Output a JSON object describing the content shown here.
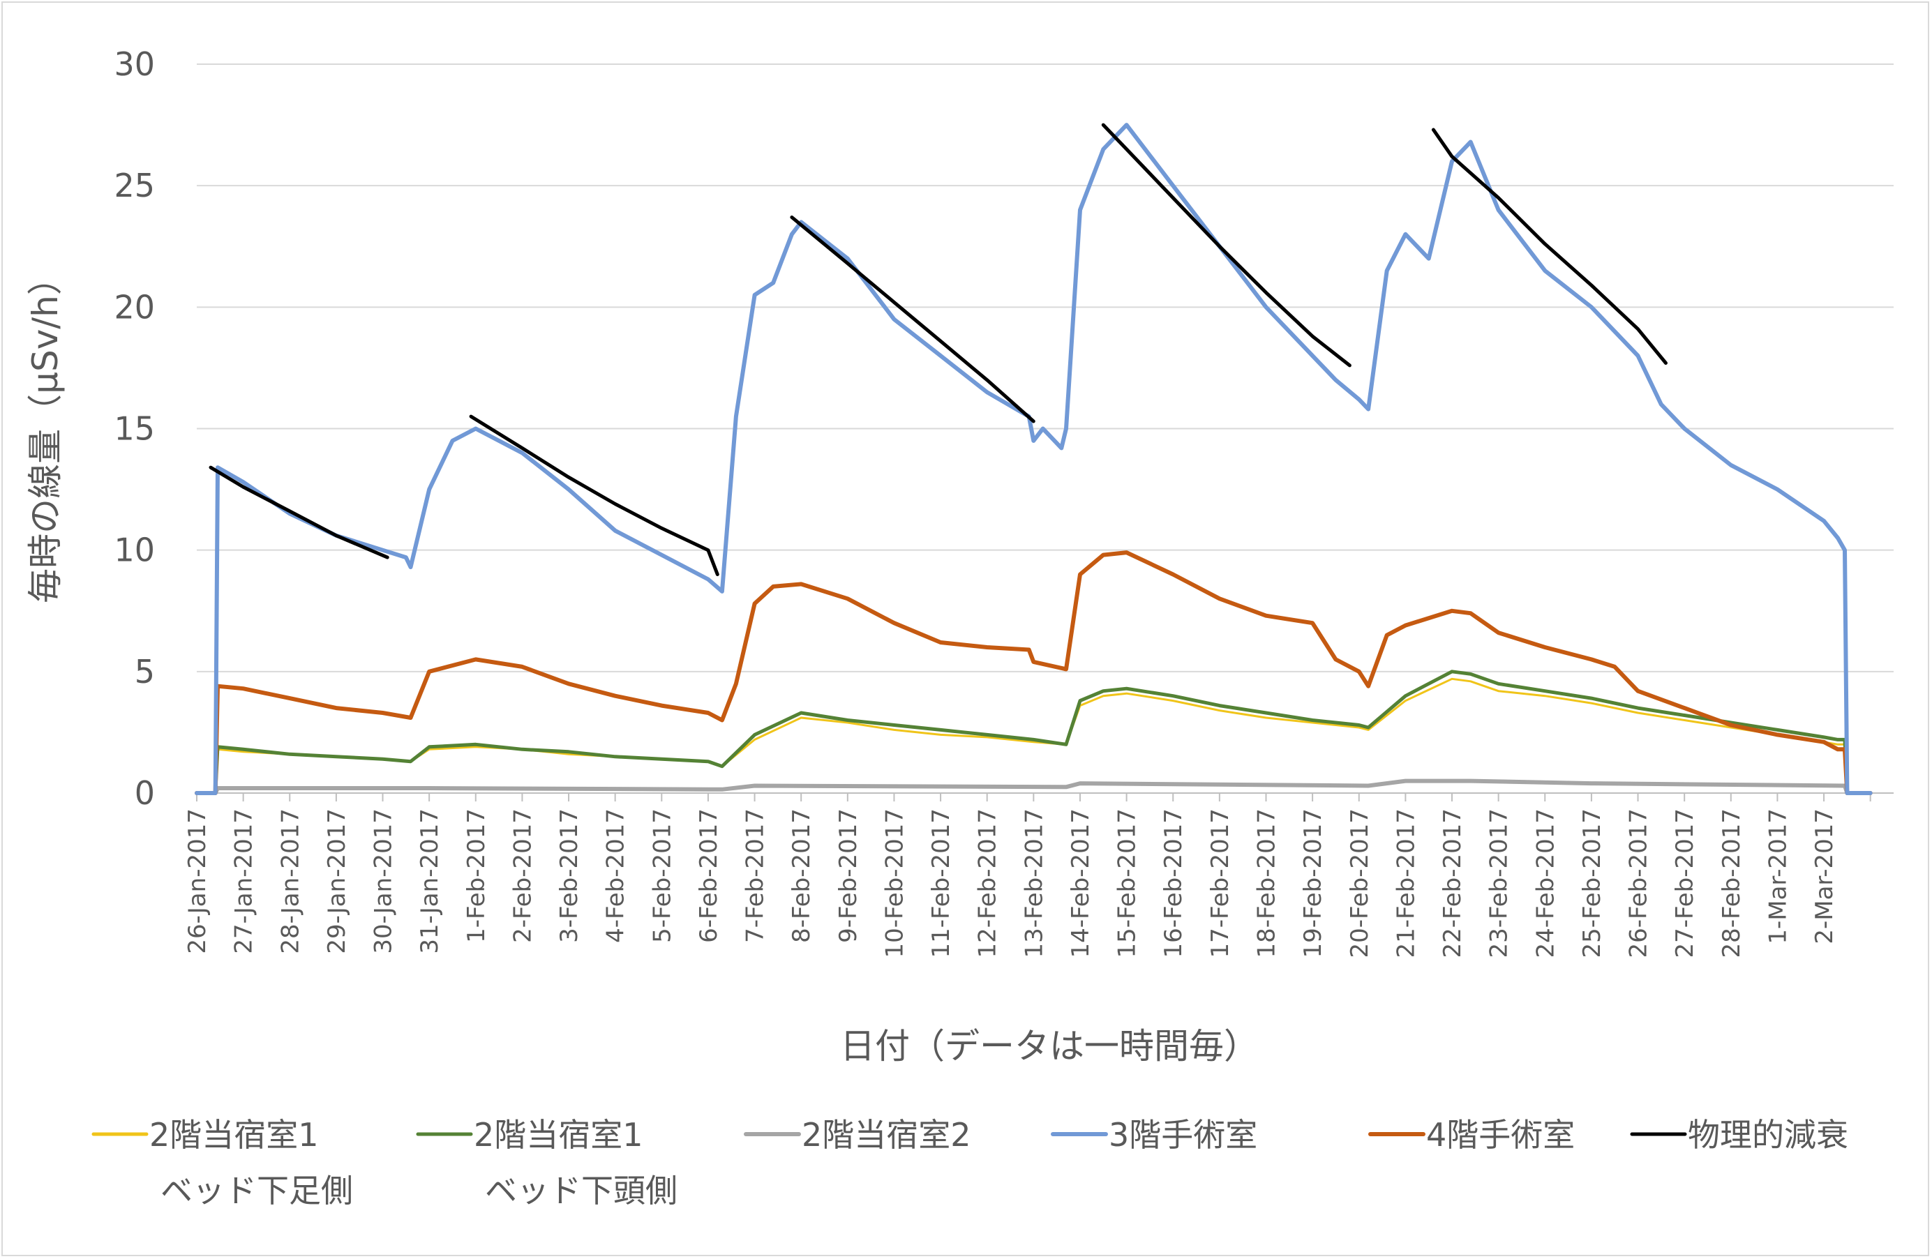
{
  "chart_data": {
    "type": "line",
    "title": "",
    "xlabel": "日付（データは一時間毎）",
    "ylabel": "毎時の線量（μSv/h）",
    "ylim": [
      0,
      30
    ],
    "yticks": [
      0,
      5,
      10,
      15,
      20,
      25,
      30
    ],
    "grid": true,
    "legend_position": "bottom",
    "x_start_date": "2017-01-26",
    "x_end_date": "2017-03-03",
    "xtick_labels": [
      "26-Jan-2017",
      "27-Jan-2017",
      "28-Jan-2017",
      "29-Jan-2017",
      "30-Jan-2017",
      "31-Jan-2017",
      "1-Feb-2017",
      "2-Feb-2017",
      "3-Feb-2017",
      "4-Feb-2017",
      "5-Feb-2017",
      "6-Feb-2017",
      "7-Feb-2017",
      "8-Feb-2017",
      "9-Feb-2017",
      "10-Feb-2017",
      "11-Feb-2017",
      "12-Feb-2017",
      "13-Feb-2017",
      "14-Feb-2017",
      "15-Feb-2017",
      "16-Feb-2017",
      "17-Feb-2017",
      "18-Feb-2017",
      "19-Feb-2017",
      "20-Feb-2017",
      "21-Feb-2017",
      "22-Feb-2017",
      "23-Feb-2017",
      "24-Feb-2017",
      "25-Feb-2017",
      "26-Feb-2017",
      "27-Feb-2017",
      "28-Feb-2017",
      "1-Mar-2017",
      "2-Mar-2017"
    ],
    "series": [
      {
        "name": "2階当宿室1 ベッド下足側",
        "legend_lines": [
          "2階当宿室1",
          "ベッド下足側"
        ],
        "color": "#f0c419",
        "stroke_width": 3,
        "x": [
          0,
          0.4,
          0.45,
          1,
          2,
          3,
          4,
          4.6,
          5,
          6,
          7,
          8,
          9,
          10,
          11,
          11.3,
          12,
          13,
          14,
          15,
          16,
          17,
          18,
          18.7,
          19,
          19.5,
          20,
          21,
          22,
          23,
          24,
          25,
          25.2,
          26,
          27,
          27.4,
          28,
          29,
          30,
          31,
          32,
          33,
          34,
          35,
          35.3,
          35.45,
          35.5,
          36
        ],
        "y": [
          0,
          0,
          1.8,
          1.7,
          1.6,
          1.5,
          1.4,
          1.3,
          1.8,
          1.9,
          1.8,
          1.6,
          1.5,
          1.4,
          1.3,
          1.1,
          2.2,
          3.1,
          2.9,
          2.6,
          2.4,
          2.3,
          2.1,
          2.0,
          3.6,
          4.0,
          4.1,
          3.8,
          3.4,
          3.1,
          2.9,
          2.7,
          2.6,
          3.8,
          4.7,
          4.6,
          4.2,
          4.0,
          3.7,
          3.3,
          3.0,
          2.7,
          2.4,
          2.1,
          2.0,
          2.0,
          0,
          0
        ]
      },
      {
        "name": "2階当宿室1 ベッド下頭側",
        "legend_lines": [
          "2階当宿室1",
          "ベッド下頭側"
        ],
        "color": "#548235",
        "stroke_width": 5,
        "x": [
          0,
          0.4,
          0.45,
          1,
          2,
          3,
          4,
          4.6,
          5,
          6,
          7,
          8,
          9,
          10,
          11,
          11.3,
          12,
          13,
          14,
          15,
          16,
          17,
          18,
          18.7,
          19,
          19.5,
          20,
          21,
          22,
          23,
          24,
          25,
          25.2,
          26,
          27,
          27.4,
          28,
          29,
          30,
          31,
          32,
          33,
          34,
          35,
          35.3,
          35.45,
          35.5,
          36
        ],
        "y": [
          0,
          0,
          1.9,
          1.8,
          1.6,
          1.5,
          1.4,
          1.3,
          1.9,
          2.0,
          1.8,
          1.7,
          1.5,
          1.4,
          1.3,
          1.1,
          2.4,
          3.3,
          3.0,
          2.8,
          2.6,
          2.4,
          2.2,
          2.0,
          3.8,
          4.2,
          4.3,
          4.0,
          3.6,
          3.3,
          3.0,
          2.8,
          2.7,
          4.0,
          5.0,
          4.9,
          4.5,
          4.2,
          3.9,
          3.5,
          3.2,
          2.9,
          2.6,
          2.3,
          2.2,
          2.2,
          0,
          0
        ]
      },
      {
        "name": "2階当宿室2",
        "legend_lines": [
          "2階当宿室2"
        ],
        "color": "#a5a5a5",
        "stroke_width": 6,
        "x": [
          0,
          0.4,
          0.45,
          5,
          11.3,
          12,
          18.7,
          19,
          25.2,
          26,
          27.4,
          30,
          35.45,
          35.5,
          36
        ],
        "y": [
          0,
          0,
          0.2,
          0.2,
          0.15,
          0.3,
          0.25,
          0.4,
          0.3,
          0.5,
          0.5,
          0.4,
          0.3,
          0,
          0
        ]
      },
      {
        "name": "3階手術室",
        "legend_lines": [
          "3階手術室"
        ],
        "color": "#7199d6",
        "stroke_width": 6,
        "x": [
          0,
          0.4,
          0.45,
          1,
          2,
          3,
          4,
          4.5,
          4.6,
          5,
          5.5,
          6,
          7,
          8,
          9,
          10,
          11,
          11.3,
          11.6,
          12,
          12.4,
          12.8,
          13,
          14,
          15,
          16,
          17,
          17.9,
          18,
          18.2,
          18.6,
          18.7,
          19,
          19.5,
          20,
          21,
          22,
          23,
          24,
          24.5,
          25,
          25.2,
          25.6,
          26,
          26.5,
          27,
          27.4,
          28,
          29,
          30,
          31,
          31.5,
          32,
          33,
          34,
          35,
          35.3,
          35.45,
          35.5,
          36
        ],
        "y": [
          0,
          0,
          13.4,
          12.8,
          11.5,
          10.6,
          10.0,
          9.7,
          9.3,
          12.5,
          14.5,
          15.0,
          14.0,
          12.5,
          10.8,
          9.8,
          8.8,
          8.3,
          15.5,
          20.5,
          21.0,
          23.0,
          23.5,
          22.0,
          19.5,
          18.0,
          16.5,
          15.5,
          14.5,
          15.0,
          14.2,
          15.0,
          24.0,
          26.5,
          27.5,
          25.0,
          22.5,
          20.0,
          18.0,
          17.0,
          16.2,
          15.8,
          21.5,
          23.0,
          22.0,
          26.0,
          26.8,
          24.0,
          21.5,
          20.0,
          18.0,
          16.0,
          15.0,
          13.5,
          12.5,
          11.2,
          10.5,
          10.0,
          0,
          0
        ]
      },
      {
        "name": "4階手術室",
        "legend_lines": [
          "4階手術室"
        ],
        "color": "#c55a11",
        "stroke_width": 6,
        "x": [
          0,
          0.4,
          0.45,
          1,
          2,
          3,
          4,
          4.6,
          5,
          6,
          7,
          8,
          9,
          10,
          11,
          11.3,
          11.6,
          12,
          12.4,
          13,
          14,
          15,
          16,
          17,
          17.9,
          18,
          18.7,
          19,
          19.5,
          20,
          21,
          22,
          23,
          24,
          24.5,
          25,
          25.2,
          25.6,
          26,
          27,
          27.4,
          28,
          29,
          30,
          30.5,
          31,
          32,
          33,
          34,
          35,
          35.3,
          35.45,
          35.5,
          36
        ],
        "y": [
          0,
          0,
          4.4,
          4.3,
          3.9,
          3.5,
          3.3,
          3.1,
          5.0,
          5.5,
          5.2,
          4.5,
          4.0,
          3.6,
          3.3,
          3.0,
          4.5,
          7.8,
          8.5,
          8.6,
          8.0,
          7.0,
          6.2,
          6.0,
          5.9,
          5.4,
          5.1,
          9.0,
          9.8,
          9.9,
          9.0,
          8.0,
          7.3,
          7.0,
          5.5,
          5.0,
          4.4,
          6.5,
          6.9,
          7.5,
          7.4,
          6.6,
          6.0,
          5.5,
          5.2,
          4.2,
          3.5,
          2.8,
          2.4,
          2.1,
          1.8,
          1.8,
          0,
          0
        ]
      },
      {
        "name": "物理的減衰",
        "legend_lines": [
          "物理的減衰"
        ],
        "color": "#000000",
        "stroke_width": 5,
        "segments": [
          {
            "x": [
              0.3,
              1,
              2,
              3,
              4.1
            ],
            "y": [
              13.4,
              12.6,
              11.6,
              10.6,
              9.7
            ]
          },
          {
            "x": [
              5.9,
              7,
              8,
              9,
              10,
              11,
              11.2
            ],
            "y": [
              15.5,
              14.2,
              13.0,
              11.9,
              10.9,
              10.0,
              9.0
            ]
          },
          {
            "x": [
              12.8,
              14,
              15,
              16,
              17,
              18
            ],
            "y": [
              23.7,
              21.8,
              20.2,
              18.6,
              17.0,
              15.3
            ]
          },
          {
            "x": [
              19.5,
              20,
              21,
              22,
              23,
              24,
              24.8
            ],
            "y": [
              27.5,
              26.5,
              24.5,
              22.5,
              20.6,
              18.8,
              17.6
            ]
          },
          {
            "x": [
              26.6,
              27,
              28,
              29,
              30,
              31,
              31.6
            ],
            "y": [
              27.3,
              26.2,
              24.5,
              22.6,
              20.9,
              19.1,
              17.7
            ]
          }
        ]
      }
    ]
  }
}
